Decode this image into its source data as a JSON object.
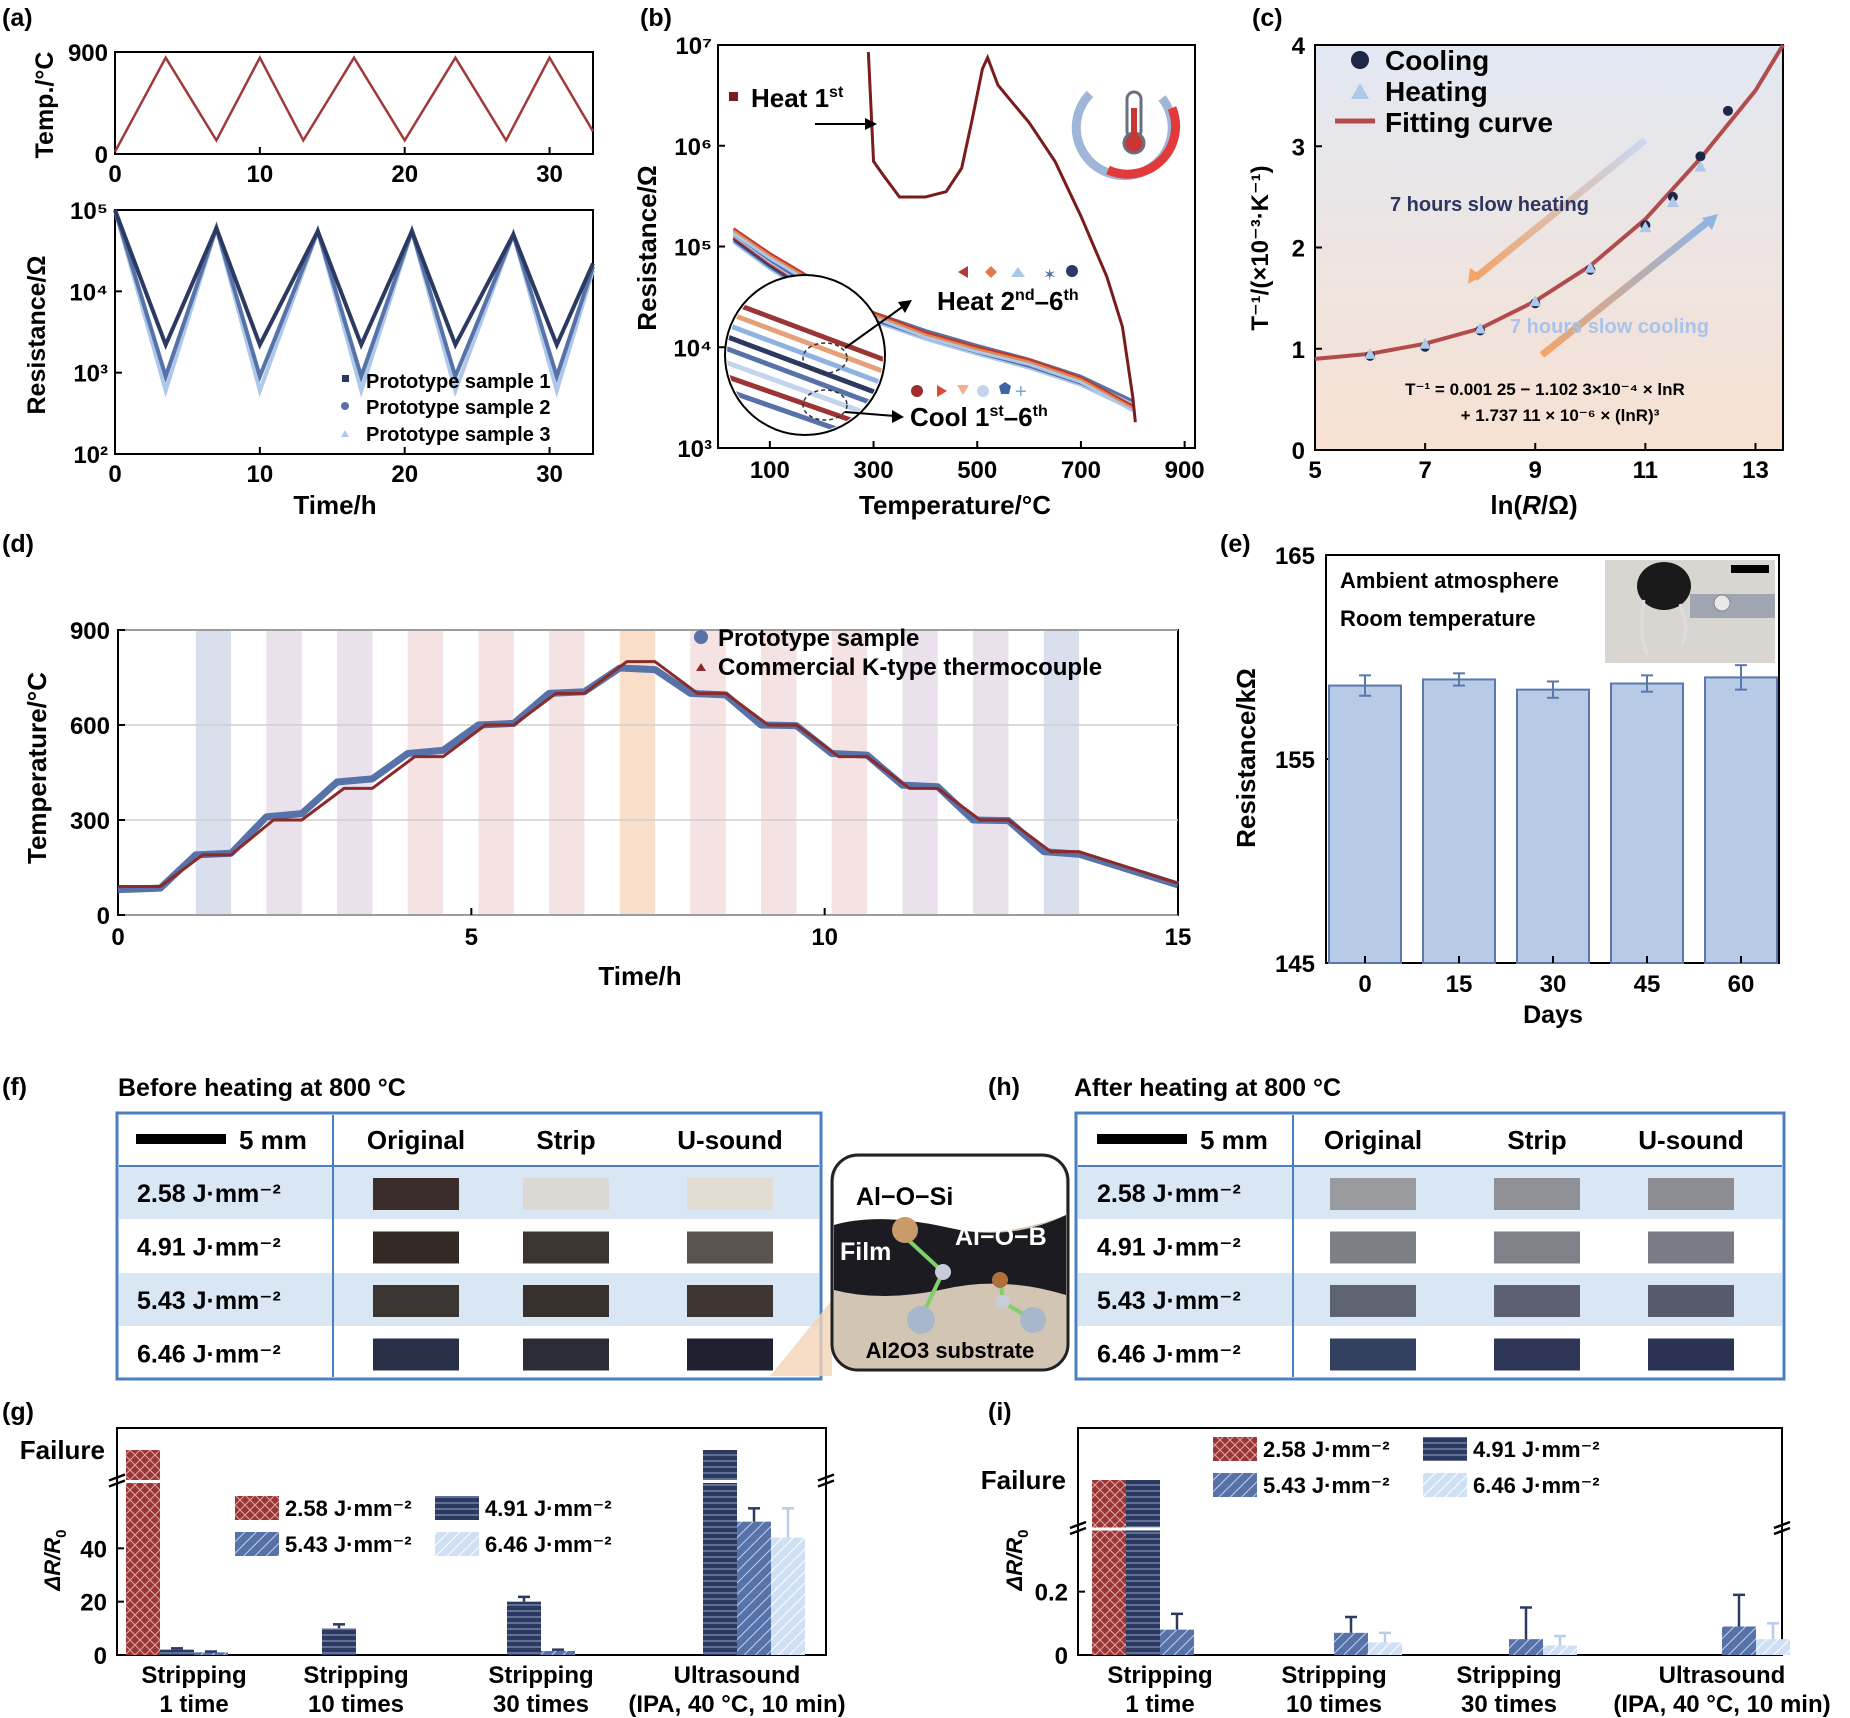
{
  "colors": {
    "maroon": "#8b2a2a",
    "navy": "#2c3a62",
    "mid_blue": "#5672a8",
    "light_blue": "#aec8ea",
    "bar_fill": "#b7cae6",
    "bar_stroke": "#5a78ad",
    "bar_maroon": "#9b3535",
    "table_border": "#4a7fc1",
    "row_shade": "#d9e7f5",
    "band_blue": "#c9d2e6",
    "band_purple": "#e1d4e6",
    "band_pink": "#f1d6d6",
    "band_orange": "#f6d2b3"
  },
  "panels": {
    "a": {
      "label": "(a)"
    },
    "b": {
      "label": "(b)"
    },
    "c": {
      "label": "(c)"
    },
    "d": {
      "label": "(d)"
    },
    "e": {
      "label": "(e)"
    },
    "f": {
      "label": "(f)"
    },
    "g": {
      "label": "(g)"
    },
    "h": {
      "label": "(h)"
    },
    "i": {
      "label": "(i)"
    }
  },
  "chart_data": [
    {
      "id": "a_top",
      "type": "line",
      "ylabel": "Temp./°C",
      "xlim": [
        0,
        33
      ],
      "ylim": [
        0,
        900
      ],
      "xticks": [
        "0",
        "10",
        "20",
        "30"
      ],
      "yticks": [
        "0",
        "900"
      ],
      "series": [
        {
          "x": [
            0,
            3.5,
            7,
            10,
            13,
            16.5,
            20,
            23.5,
            27,
            30,
            33
          ],
          "values": [
            20,
            850,
            120,
            850,
            120,
            850,
            120,
            850,
            120,
            850,
            200
          ]
        }
      ]
    },
    {
      "id": "a_bottom",
      "type": "line",
      "yscale": "log",
      "xlabel": "Time/h",
      "ylabel": "Resistance/Ω",
      "xlim": [
        0,
        33
      ],
      "ylim": [
        100,
        100000
      ],
      "xticks": [
        "0",
        "10",
        "20",
        "30"
      ],
      "yticks": [
        "10²",
        "10³",
        "10⁴",
        "10⁵"
      ],
      "legend_position": "bottom-right",
      "series": [
        {
          "name": "Prototype sample 1",
          "x": [
            0,
            3.5,
            7,
            10,
            14,
            17,
            20.5,
            23.5,
            27.5,
            30.5,
            33
          ],
          "values": [
            100000,
            2200,
            60000,
            2200,
            55000,
            2200,
            55000,
            2200,
            50000,
            2200,
            22000
          ]
        },
        {
          "name": "Prototype sample 2",
          "x": [
            0,
            3.5,
            7,
            10,
            14,
            17,
            20.5,
            23.5,
            27.5,
            30.5,
            33
          ],
          "values": [
            100000,
            900,
            60000,
            900,
            55000,
            900,
            55000,
            900,
            50000,
            900,
            20000
          ]
        },
        {
          "name": "Prototype sample 3",
          "x": [
            0,
            3.5,
            7,
            10,
            14,
            17,
            20.5,
            23.5,
            27.5,
            30.5,
            33
          ],
          "values": [
            100000,
            600,
            60000,
            600,
            55000,
            600,
            55000,
            600,
            50000,
            600,
            18000
          ]
        }
      ]
    },
    {
      "id": "b",
      "type": "line",
      "yscale": "log",
      "xlabel": "Temperature/°C",
      "ylabel": "Resistance/Ω",
      "xlim": [
        0,
        920
      ],
      "ylim": [
        1000,
        10000000
      ],
      "xticks": [
        "100",
        "300",
        "500",
        "700",
        "900"
      ],
      "yticks": [
        "10³",
        "10⁴",
        "10⁵",
        "10⁶",
        "10⁷"
      ],
      "series": [
        {
          "name": "Heat 1st",
          "x": [
            290,
            300,
            320,
            350,
            400,
            440,
            470,
            490,
            510,
            520,
            540,
            560,
            600,
            650,
            700,
            750,
            780,
            800,
            805
          ],
          "values": [
            8500000,
            700000,
            500000,
            310000,
            310000,
            350000,
            600000,
            1800000,
            5800000,
            7500000,
            4000000,
            3000000,
            1700000,
            700000,
            200000,
            50000,
            16000,
            3200,
            1800
          ]
        },
        {
          "name": "Heat 2nd–6th",
          "x": [
            30,
            100,
            200,
            300,
            400,
            500,
            600,
            700,
            800
          ],
          "values": [
            150000,
            85000,
            42000,
            22000,
            14000,
            10000,
            7500,
            5000,
            2600
          ]
        },
        {
          "name": "Cool 1st–6th",
          "x": [
            30,
            100,
            200,
            300,
            400,
            500,
            600,
            700,
            800
          ],
          "values": [
            110000,
            60000,
            28000,
            18000,
            12000,
            8500,
            6200,
            4200,
            2400
          ]
        }
      ],
      "annotations": [
        "Heat 1",
        "st",
        "Heat 2",
        "nd",
        "–6",
        "th",
        "Cool 1",
        "st",
        "–6",
        "th"
      ]
    },
    {
      "id": "c",
      "type": "scatter",
      "xlabel_parts": [
        "ln(",
        "R",
        "/Ω)"
      ],
      "ylabel": "T⁻¹/(×10⁻³·K⁻¹)",
      "xlim": [
        5,
        13.5
      ],
      "ylim": [
        0,
        4
      ],
      "xticks": [
        "5",
        "7",
        "9",
        "11",
        "13"
      ],
      "yticks": [
        "0",
        "1",
        "2",
        "3",
        "4"
      ],
      "legend_position": "top-left",
      "series": [
        {
          "name": "Cooling",
          "x": [
            6,
            7,
            8,
            9,
            10,
            11,
            11.5,
            12,
            12.5
          ],
          "values": [
            0.93,
            1.02,
            1.18,
            1.45,
            1.78,
            2.22,
            2.5,
            2.9,
            3.35
          ]
        },
        {
          "name": "Heating",
          "x": [
            6,
            7,
            8,
            9,
            10,
            11,
            11.5,
            12
          ],
          "values": [
            0.95,
            1.05,
            1.2,
            1.47,
            1.8,
            2.2,
            2.45,
            2.8
          ]
        },
        {
          "name": "Fitting curve",
          "x": [
            5,
            6,
            7,
            8,
            9,
            10,
            11,
            12,
            13,
            13.5
          ],
          "values": [
            0.9,
            0.95,
            1.05,
            1.2,
            1.47,
            1.82,
            2.28,
            2.88,
            3.55,
            4.0
          ]
        }
      ],
      "annotations": [
        "7 hours slow heating",
        "7 hours slow cooling"
      ],
      "equation_line1": "T⁻¹ = 0.001 25 − 1.102 3×10⁻⁴ × lnR",
      "equation_line2": "+ 1.737 11 × 10⁻⁶ × (lnR)³"
    },
    {
      "id": "d",
      "type": "line",
      "xlabel": "Time/h",
      "ylabel": "Temperature/°C",
      "xlim": [
        0,
        15
      ],
      "ylim": [
        0,
        900
      ],
      "xticks": [
        "0",
        "5",
        "10",
        "15"
      ],
      "yticks": [
        "0",
        "300",
        "600",
        "900"
      ],
      "grid": true,
      "legend_position": "top-right",
      "series": [
        {
          "name": "Prototype sample",
          "x": [
            0,
            0.6,
            1.1,
            1.6,
            2.1,
            2.6,
            3.1,
            3.6,
            4.1,
            4.6,
            5.1,
            5.6,
            6.1,
            6.6,
            7.1,
            7.6,
            8.1,
            8.6,
            9.1,
            9.6,
            10.1,
            10.6,
            11.1,
            11.6,
            12.1,
            12.6,
            13.1,
            13.6,
            15
          ],
          "values": [
            80,
            85,
            190,
            195,
            310,
            320,
            420,
            430,
            510,
            520,
            600,
            605,
            700,
            705,
            780,
            775,
            700,
            695,
            600,
            598,
            510,
            505,
            410,
            405,
            300,
            298,
            200,
            192,
            95
          ]
        },
        {
          "name": "Commercial K-type thermocouple",
          "x": [
            0,
            0.6,
            1.2,
            1.6,
            2.2,
            2.6,
            3.2,
            3.6,
            4.2,
            4.6,
            5.2,
            5.6,
            6.2,
            6.6,
            7.2,
            7.6,
            8.2,
            8.6,
            9.2,
            9.6,
            10.2,
            10.6,
            11.2,
            11.6,
            12.2,
            12.6,
            13.2,
            13.6,
            15
          ],
          "values": [
            90,
            90,
            190,
            190,
            300,
            300,
            400,
            400,
            500,
            500,
            600,
            600,
            700,
            700,
            800,
            800,
            700,
            700,
            600,
            600,
            500,
            500,
            400,
            400,
            300,
            300,
            200,
            200,
            100
          ]
        }
      ]
    },
    {
      "id": "e",
      "type": "bar",
      "xlabel": "Days",
      "ylabel": "Resistance/kΩ",
      "categories": [
        "0",
        "15",
        "30",
        "45",
        "60"
      ],
      "values": [
        158.6,
        158.9,
        158.4,
        158.7,
        159.0
      ],
      "errors": [
        0.5,
        0.3,
        0.4,
        0.4,
        0.6
      ],
      "ylim": [
        145,
        165
      ],
      "yticks": [
        "145",
        "155",
        "165"
      ],
      "annotations": [
        "Ambient atmosphere",
        "Room temperature"
      ]
    },
    {
      "id": "g",
      "type": "bar",
      "ylabel_parts": [
        "ΔR/",
        "R",
        "0"
      ],
      "categories": [
        "Stripping\n1 time",
        "Stripping\n10 times",
        "Stripping\n30 times",
        "Ultrasound\n(IPA, 40 °C, 10 min)"
      ],
      "ylim": [
        0,
        60
      ],
      "yticks": [
        "0",
        "20",
        "40",
        "Failure"
      ],
      "broken_axis": true,
      "legend_position": "top-center",
      "series": [
        {
          "name": "2.58 J·mm⁻²",
          "values": [
            "Failure",
            0,
            0,
            0
          ]
        },
        {
          "name": "4.91 J·mm⁻²",
          "values": [
            2,
            10,
            20,
            "Failure"
          ],
          "errors": [
            0.5,
            1.5,
            1.8,
            0
          ]
        },
        {
          "name": "5.43 J·mm⁻²",
          "values": [
            1,
            0,
            1.5,
            50
          ],
          "errors": [
            0.3,
            0,
            0.5,
            5
          ]
        },
        {
          "name": "6.46 J·mm⁻²",
          "values": [
            0,
            0,
            0,
            44
          ],
          "errors": [
            0,
            0,
            0,
            11
          ]
        }
      ]
    },
    {
      "id": "i",
      "type": "bar",
      "ylabel_parts": [
        "ΔR/",
        "R",
        "0"
      ],
      "categories": [
        "Stripping\n1 time",
        "Stripping\n10 times",
        "Stripping\n30 times",
        "Ultrasound\n(IPA, 40 °C, 10 min)"
      ],
      "ylim": [
        0,
        0.3
      ],
      "yticks": [
        "0",
        "0.2",
        "Failure"
      ],
      "broken_axis": true,
      "legend_position": "top-center",
      "series": [
        {
          "name": "2.58 J·mm⁻²",
          "values": [
            "Failure",
            0,
            0,
            0
          ]
        },
        {
          "name": "4.91 J·mm⁻²",
          "values": [
            "Failure",
            0,
            0,
            0
          ]
        },
        {
          "name": "5.43 J·mm⁻²",
          "values": [
            0.08,
            0.07,
            0.05,
            0.09
          ],
          "errors": [
            0.05,
            0.05,
            0.1,
            0.1
          ]
        },
        {
          "name": "6.46 J·mm⁻²",
          "values": [
            0,
            0.04,
            0.03,
            0.05
          ],
          "errors": [
            0.04,
            0.03,
            0.03,
            0.05
          ]
        }
      ]
    }
  ],
  "tables": {
    "f": {
      "title": "Before heating at 800 °C",
      "scale_label": "5 mm",
      "headers": [
        "Original",
        "Strip",
        "U-sound"
      ],
      "rows": [
        "2.58 J·mm⁻²",
        "4.91 J·mm⁻²",
        "5.43 J·mm⁻²",
        "6.46 J·mm⁻²"
      ],
      "swatches": [
        [
          "#3b2e2a",
          "#dcd9d2",
          "#e2ddd3"
        ],
        [
          "#332a26",
          "#3c3430",
          "#5a5450"
        ],
        [
          "#3a3532",
          "#37302d",
          "#3e3431"
        ],
        [
          "#2a3048",
          "#2b2d36",
          "#1f2130"
        ]
      ]
    },
    "h": {
      "title": "After heating at 800 °C",
      "scale_label": "5 mm",
      "headers": [
        "Original",
        "Strip",
        "U-sound"
      ],
      "rows": [
        "2.58 J·mm⁻²",
        "4.91 J·mm⁻²",
        "5.43 J·mm⁻²",
        "6.46 J·mm⁻²"
      ],
      "swatches": [
        [
          "#9a9b9e",
          "#8f9095",
          "#8c8d92"
        ],
        [
          "#7d7f87",
          "#7f8189",
          "#7a7c85"
        ],
        [
          "#5e6372",
          "#5c6070",
          "#565b6b"
        ],
        [
          "#33405f",
          "#2d3657",
          "#2a3353"
        ]
      ]
    }
  },
  "inset_diagram": {
    "aos": "Al−O−Si",
    "aob": "Al−O−B",
    "film": "Film",
    "substrate": "Al2O3 substrate"
  }
}
